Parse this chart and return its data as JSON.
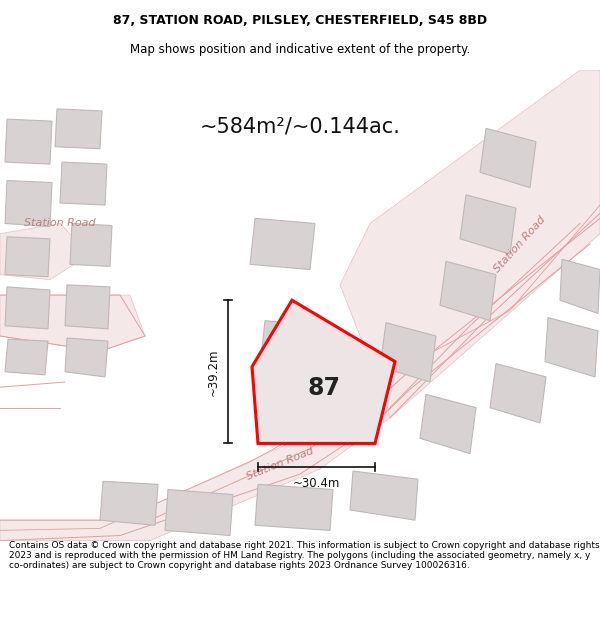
{
  "title_line1": "87, STATION ROAD, PILSLEY, CHESTERFIELD, S45 8BD",
  "title_line2": "Map shows position and indicative extent of the property.",
  "area_text": "~584m²/~0.144ac.",
  "height_label": "~39.2m",
  "width_label": "~30.4m",
  "number_label": "87",
  "footer_text": "Contains OS data © Crown copyright and database right 2021. This information is subject to Crown copyright and database rights 2023 and is reproduced with the permission of HM Land Registry. The polygons (including the associated geometry, namely x, y co-ordinates) are subject to Crown copyright and database rights 2023 Ordnance Survey 100026316.",
  "map_bg": "#f9f4f4",
  "road_fill": "#f5e8e8",
  "road_edge": "#e8c0c0",
  "road_line": "#e0a0a0",
  "building_fill": "#d8d2d2",
  "building_edge": "#c0b8b8",
  "plot_fill": "#ede5e5",
  "plot_edge": "#ff0000",
  "plot_lw": 2.2,
  "dim_color": "#111111",
  "road_text_color": "#c08080",
  "number_color": "#222222",
  "title_fontsize": 9,
  "sub_fontsize": 8.5,
  "area_fontsize": 15,
  "label_fontsize": 8.5,
  "number_fontsize": 17,
  "road_text_fontsize": 8,
  "footer_fontsize": 6.5
}
